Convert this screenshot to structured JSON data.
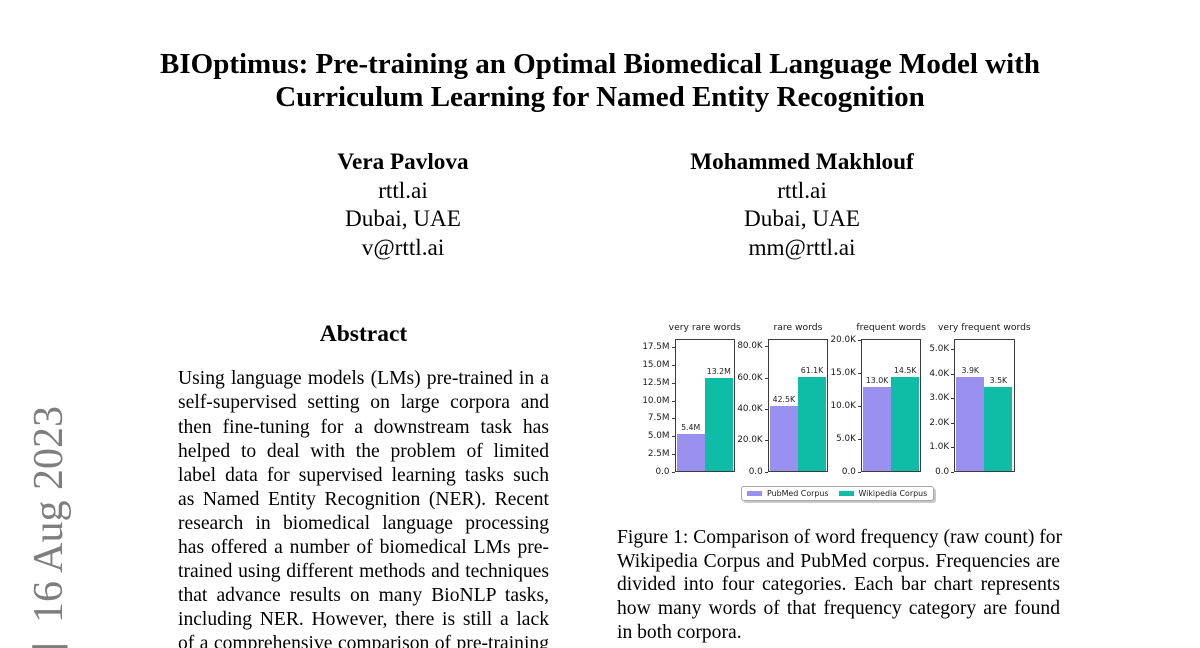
{
  "page": {
    "background": "#ffffff"
  },
  "stamp": {
    "date": "16 Aug 2023",
    "partial_bracket": "]",
    "color": "#7e7e7e"
  },
  "title": {
    "line1": "BIOptimus: Pre-training an Optimal Biomedical Language Model with",
    "line2": "Curriculum Learning for Named Entity Recognition"
  },
  "authors": [
    {
      "name": "Vera Pavlova",
      "affiliation": "rttl.ai",
      "location": "Dubai, UAE",
      "email": "v@rttl.ai"
    },
    {
      "name": "Mohammed Makhlouf",
      "affiliation": "rttl.ai",
      "location": "Dubai, UAE",
      "email": "mm@rttl.ai"
    }
  ],
  "abstract": {
    "heading": "Abstract",
    "lines": [
      "Using language models (LMs) pre-trained in a",
      "self-supervised setting on large corpora and",
      "then fine-tuning for a downstream task has",
      "helped to deal with the problem of limited",
      "label data for supervised learning tasks such",
      "as Named Entity Recognition (NER). Recent",
      "research in biomedical language processing",
      "has offered a number of biomedical LMs pre-",
      "trained using different methods and techniques",
      "that advance results on many BioNLP tasks,",
      "including NER. However, there is still a lack",
      "of a comprehensive comparison of pre-training"
    ]
  },
  "figure": {
    "caption_lines": [
      "Figure 1: Comparison of word frequency (raw count) for",
      "Wikipedia Corpus and PubMed corpus. Frequencies are",
      "divided into four categories. Each bar chart represents",
      "how many words of that frequency category are found",
      "in both corpora."
    ],
    "chart_data": {
      "type": "bar",
      "series": [
        {
          "name": "PubMed Corpus",
          "color": "#9a90f0"
        },
        {
          "name": "Wikipedia Corpus",
          "color": "#0fbda6"
        }
      ],
      "panels": [
        {
          "title": "very rare words",
          "ylim": [
            0,
            18770000
          ],
          "ytick_labels": [
            "0.0",
            "2.5M",
            "5.0M",
            "7.5M",
            "10.0M",
            "12.5M",
            "15.0M",
            "17.5M"
          ],
          "ytick_values": [
            0,
            2500000,
            5000000,
            7500000,
            10000000,
            12500000,
            15000000,
            17500000
          ],
          "values": [
            5400000,
            13200000
          ],
          "value_labels": [
            "5.4M",
            "13.2M"
          ]
        },
        {
          "title": "rare words",
          "ylim": [
            0,
            85100
          ],
          "ytick_labels": [
            "0.0",
            "20.0K",
            "40.0K",
            "60.0K",
            "80.0K"
          ],
          "ytick_values": [
            0,
            20000,
            40000,
            60000,
            80000
          ],
          "values": [
            42500,
            61100
          ],
          "value_labels": [
            "42.5K",
            "61.1K"
          ]
        },
        {
          "title": "frequent words",
          "ylim": [
            0,
            20300
          ],
          "ytick_labels": [
            "0.0",
            "5.0K",
            "10.0K",
            "15.0K",
            "20.0K"
          ],
          "ytick_values": [
            0,
            5000,
            10000,
            15000,
            20000
          ],
          "values": [
            13000,
            14500
          ],
          "value_labels": [
            "13.0K",
            "14.5K"
          ]
        },
        {
          "title": "very frequent words",
          "ylim": [
            0,
            5450
          ],
          "ytick_labels": [
            "0.0",
            "1.0K",
            "2.0K",
            "3.0K",
            "4.0K",
            "5.0K"
          ],
          "ytick_values": [
            0,
            1000,
            2000,
            3000,
            4000,
            5000
          ],
          "values": [
            3900,
            3500
          ],
          "value_labels": [
            "3.9K",
            "3.5K"
          ]
        }
      ],
      "legend": {
        "position": "lower center"
      }
    }
  }
}
